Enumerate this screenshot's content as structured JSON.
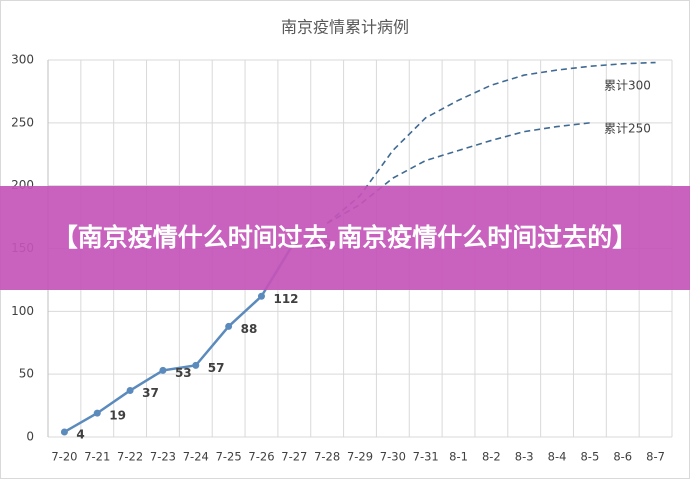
{
  "chart_data": {
    "type": "line",
    "title": "南京疫情累计病例",
    "categories": [
      "7-20",
      "7-21",
      "7-22",
      "7-23",
      "7-24",
      "7-25",
      "7-26",
      "7-27",
      "7-28",
      "7-29",
      "7-30",
      "7-31",
      "8-1",
      "8-2",
      "8-3",
      "8-4",
      "8-5",
      "8-6",
      "8-7"
    ],
    "series": [
      {
        "values": [
          4,
          19,
          37,
          53,
          57,
          88,
          112,
          155,
          null,
          null,
          null,
          null,
          null,
          null,
          null,
          null,
          null,
          null,
          null
        ],
        "color": "#5b8bbd",
        "style": "solid"
      },
      {
        "name": "累计300",
        "values": [
          null,
          null,
          null,
          null,
          null,
          null,
          null,
          null,
          170,
          192,
          228,
          254,
          268,
          280,
          288,
          292,
          295,
          297,
          298
        ],
        "color": "#3f6a93",
        "style": "dashed"
      },
      {
        "name": "累计250",
        "values": [
          null,
          null,
          null,
          null,
          null,
          null,
          null,
          null,
          170,
          185,
          206,
          220,
          228,
          236,
          243,
          247,
          250,
          null,
          null
        ],
        "color": "#3f6a93",
        "style": "dashed"
      }
    ],
    "ylim": [
      0,
      300
    ],
    "yticks": [
      0,
      50,
      100,
      150,
      200,
      250,
      300
    ],
    "grid": true
  },
  "banner": {
    "text": "【南京疫情什么时间过去,南京疫情什么时间过去的】"
  }
}
